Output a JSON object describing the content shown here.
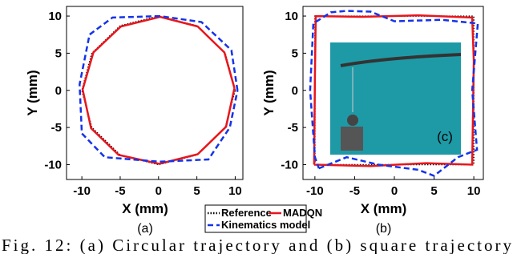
{
  "chart_data": [
    {
      "type": "line",
      "panel_label": "(a)",
      "x_label": "X (mm)",
      "y_label": "Y (mm)",
      "xlim": [
        -12,
        11
      ],
      "ylim": [
        -12,
        11.3
      ],
      "xticks": [
        -10,
        -5,
        0,
        5,
        10
      ],
      "yticks": [
        -10,
        -5,
        0,
        5,
        10
      ],
      "series": [
        {
          "name": "Reference",
          "color": "#000000",
          "dash": "dotted",
          "x": [
            10,
            8.7,
            5,
            0,
            -5,
            -8.7,
            -10,
            -8.7,
            -5,
            0,
            5,
            8.7,
            10
          ],
          "values": [
            0,
            5,
            8.7,
            10,
            8.7,
            5,
            0,
            -5,
            -8.7,
            -10,
            -8.7,
            -5,
            0
          ]
        },
        {
          "name": "MADQN",
          "color": "#e8161c",
          "dash": "solid",
          "x": [
            9.9,
            8.6,
            5.1,
            0.2,
            -4.9,
            -8.5,
            -9.9,
            -8.8,
            -5.2,
            0.1,
            5.1,
            8.8,
            9.9
          ],
          "values": [
            0.3,
            5.1,
            8.6,
            9.9,
            8.6,
            5.1,
            0.1,
            -5.1,
            -8.7,
            -9.9,
            -8.6,
            -4.9,
            0.3
          ]
        },
        {
          "name": "Kinematics model",
          "color": "#1533e8",
          "dash": "dashed",
          "x": [
            10.3,
            9.5,
            5.6,
            0.2,
            -6,
            -9,
            -10.3,
            -10,
            -7,
            0.1,
            6.5,
            9.3,
            10.3
          ],
          "values": [
            0,
            5.4,
            9.2,
            10,
            9.8,
            7.5,
            0.8,
            -5.8,
            -9,
            -9.6,
            -9.3,
            -5,
            0
          ]
        }
      ]
    },
    {
      "type": "line",
      "panel_label": "(b)",
      "x_label": "X (mm)",
      "y_label": "Y (mm)",
      "inset_label": "(c)",
      "xlim": [
        -11.5,
        11.2
      ],
      "ylim": [
        -12,
        11.3
      ],
      "xticks": [
        -10,
        -5,
        0,
        5,
        10
      ],
      "yticks": [
        -10,
        -5,
        0,
        5,
        10
      ],
      "series": [
        {
          "color": "#000000",
          "dash": "dotted",
          "x": [
            -10,
            10,
            10,
            -10,
            -10
          ],
          "values": [
            -10,
            -10,
            10,
            10,
            -10
          ]
        },
        {
          "color": "#e8161c",
          "dash": "solid",
          "x": [
            -10.1,
            -3,
            4,
            9.8,
            9.9,
            10,
            9.8,
            3,
            -4,
            -9.9,
            -10,
            -10.1
          ],
          "values": [
            -10,
            -10.2,
            -9.8,
            -10,
            -3,
            4,
            9.8,
            10.1,
            9.9,
            10,
            2,
            -10
          ]
        },
        {
          "color": "#1533e8",
          "dash": "dashed",
          "x": [
            -9.5,
            -6,
            -2,
            3,
            5,
            8,
            10.4,
            9.8,
            10.5,
            6,
            0,
            -3,
            -6,
            -8,
            -10.2,
            -10.6,
            -10,
            -9.5
          ],
          "values": [
            -10.5,
            -9,
            -10,
            -10.7,
            -11.5,
            -9,
            -8,
            0,
            9,
            9.5,
            9.3,
            10.6,
            10.7,
            10.5,
            9,
            0,
            -9,
            -10.5
          ]
        }
      ]
    }
  ],
  "caption": "Fig. 12: (a) Circular trajectory and (b) square trajectory"
}
